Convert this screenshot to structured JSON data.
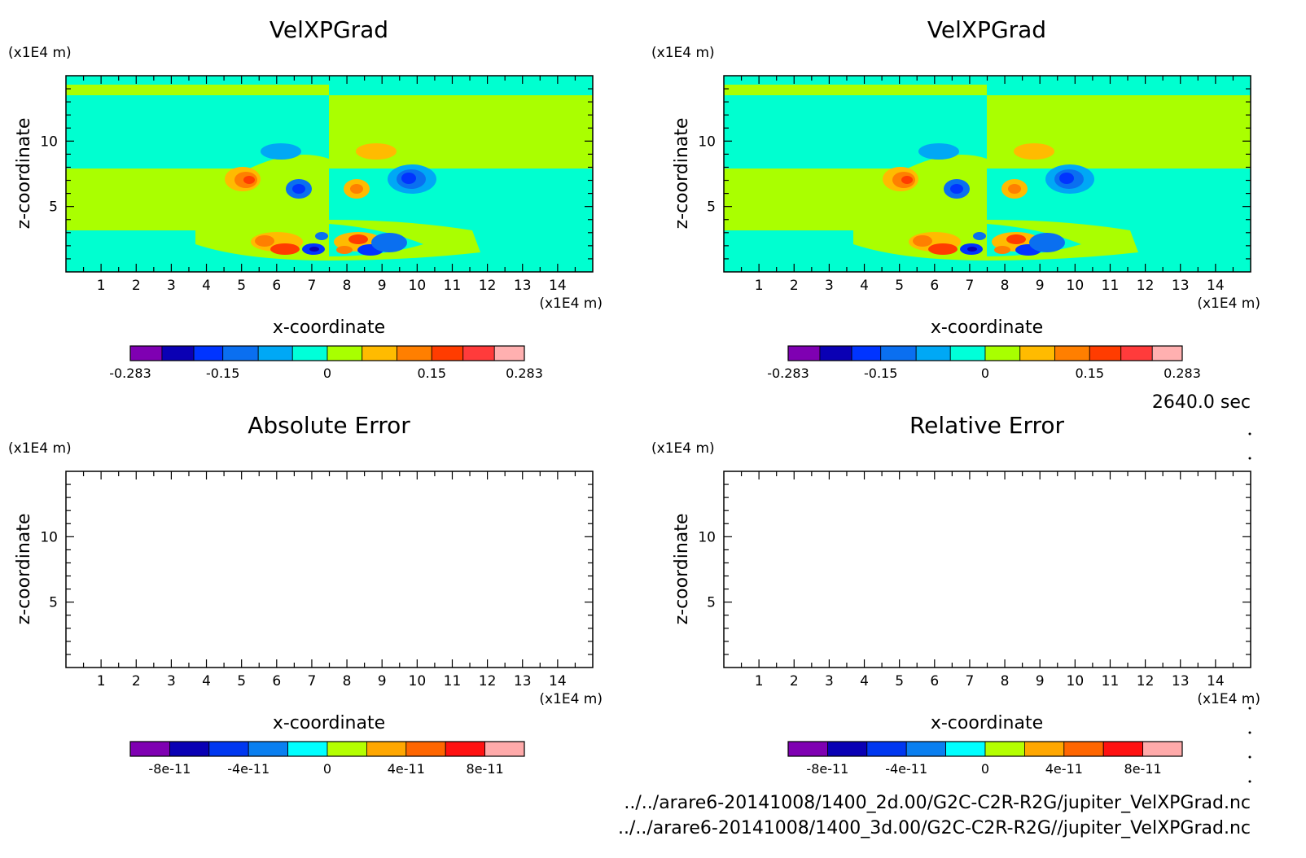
{
  "time_label": "2640.0 sec",
  "file_paths": [
    "../../arare6-20141008/1400_2d.00/G2C-C2R-R2G/jupiter_VelXPGrad.nc",
    "../../arare6-20141008/1400_3d.00/G2C-C2R-R2G//jupiter_VelXPGrad.nc"
  ],
  "chart_data": [
    {
      "type": "heatmap",
      "title": "VelXPGrad",
      "xlabel": "x-coordinate",
      "ylabel": "z-coordinate",
      "x_unit": "(x1E4 m)",
      "y_unit": "(x1E4 m)",
      "xlim": [
        0,
        15
      ],
      "ylim": [
        0,
        15
      ],
      "x_ticks": [
        1,
        2,
        3,
        4,
        5,
        6,
        7,
        8,
        9,
        10,
        11,
        12,
        13,
        14
      ],
      "y_ticks": [
        5,
        10
      ],
      "colorbar": {
        "levels": [
          -0.283,
          -0.2375,
          -0.1917,
          -0.15,
          -0.0992,
          -0.05,
          0,
          0.05,
          0.1,
          0.15,
          0.195,
          0.24,
          0.283
        ],
        "tick_labels": [
          "-0.283",
          "-0.15",
          "0",
          "0.15",
          "0.283"
        ],
        "tick_values": [
          -0.283,
          -0.15,
          0,
          0.15,
          0.283
        ]
      }
    },
    {
      "type": "heatmap",
      "title": "VelXPGrad",
      "xlabel": "x-coordinate",
      "ylabel": "z-coordinate",
      "x_unit": "(x1E4 m)",
      "y_unit": "(x1E4 m)",
      "xlim": [
        0,
        15
      ],
      "ylim": [
        0,
        15
      ],
      "x_ticks": [
        1,
        2,
        3,
        4,
        5,
        6,
        7,
        8,
        9,
        10,
        11,
        12,
        13,
        14
      ],
      "y_ticks": [
        5,
        10
      ],
      "colorbar": {
        "levels": [
          -0.283,
          -0.2375,
          -0.1917,
          -0.15,
          -0.0992,
          -0.05,
          0,
          0.05,
          0.1,
          0.15,
          0.195,
          0.24,
          0.283
        ],
        "tick_labels": [
          "-0.283",
          "-0.15",
          "0",
          "0.15",
          "0.283"
        ],
        "tick_values": [
          -0.283,
          -0.15,
          0,
          0.15,
          0.283
        ]
      }
    },
    {
      "type": "heatmap",
      "title": "Absolute Error",
      "xlabel": "x-coordinate",
      "ylabel": "z-coordinate",
      "x_unit": "(x1E4 m)",
      "y_unit": "(x1E4 m)",
      "xlim": [
        0,
        15
      ],
      "ylim": [
        0,
        15
      ],
      "x_ticks": [
        1,
        2,
        3,
        4,
        5,
        6,
        7,
        8,
        9,
        10,
        11,
        12,
        13,
        14
      ],
      "y_ticks": [
        5,
        10
      ],
      "colorbar": {
        "levels": [
          -1e-10,
          -8e-11,
          -6e-11,
          -4e-11,
          -2e-11,
          0,
          2e-11,
          4e-11,
          6e-11,
          8e-11,
          1e-10
        ],
        "tick_labels": [
          "-8e-11",
          "-4e-11",
          "0",
          "4e-11",
          "8e-11"
        ],
        "tick_values": [
          -8e-11,
          -4e-11,
          0,
          4e-11,
          8e-11
        ]
      }
    },
    {
      "type": "heatmap",
      "title": "Relative Error",
      "xlabel": "x-coordinate",
      "ylabel": "z-coordinate",
      "x_unit": "(x1E4 m)",
      "y_unit": "(x1E4 m)",
      "xlim": [
        0,
        15
      ],
      "ylim": [
        0,
        15
      ],
      "x_ticks": [
        1,
        2,
        3,
        4,
        5,
        6,
        7,
        8,
        9,
        10,
        11,
        12,
        13,
        14
      ],
      "y_ticks": [
        5,
        10
      ],
      "colorbar": {
        "levels": [
          -1e-10,
          -8e-11,
          -6e-11,
          -4e-11,
          -2e-11,
          0,
          2e-11,
          4e-11,
          6e-11,
          8e-11,
          1e-10
        ],
        "tick_labels": [
          "-8e-11",
          "-4e-11",
          "0",
          "4e-11",
          "8e-11"
        ],
        "tick_values": [
          -8e-11,
          -4e-11,
          0,
          4e-11,
          8e-11
        ]
      }
    }
  ],
  "colors": {
    "palette_12": [
      "#7f00b2",
      "#0a00b4",
      "#0034ff",
      "#0a6ff0",
      "#00a8f5",
      "#00ffd9",
      "#a8ff00",
      "#ffbb00",
      "#ff7f00",
      "#ff3c00",
      "#ff3b3b",
      "#ffb0b0"
    ],
    "palette_10": [
      "#7f00b2",
      "#0a00b4",
      "#0037f0",
      "#0a7ff0",
      "#00ffff",
      "#b4ff00",
      "#ffa700",
      "#ff6600",
      "#ff1111",
      "#ffaaaa"
    ],
    "field_bg_teal": "#00ffd0",
    "field_bg_green": "#aaff00"
  }
}
